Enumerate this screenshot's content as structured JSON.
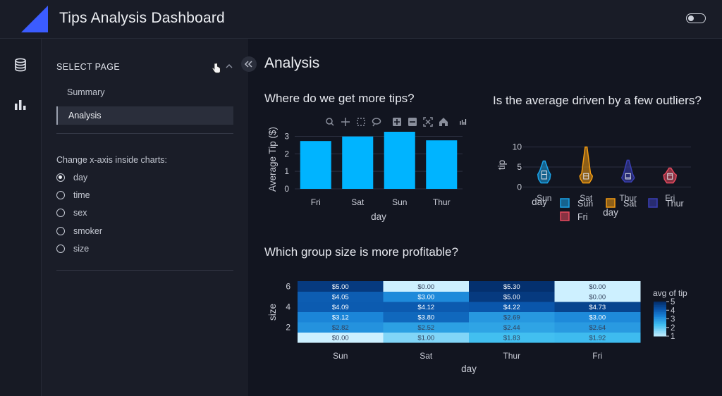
{
  "app": {
    "title": "Tips Analysis Dashboard",
    "brand_color": "#3b5cff"
  },
  "rail": {
    "icons": [
      "database-icon",
      "bar-chart-icon"
    ]
  },
  "sidebar": {
    "select_page_label": "SELECT PAGE",
    "pages": [
      {
        "label": "Summary",
        "active": false
      },
      {
        "label": "Analysis",
        "active": true
      }
    ],
    "xaxis_prompt": "Change x-axis inside charts:",
    "xaxis_options": [
      {
        "label": "day",
        "checked": true
      },
      {
        "label": "time",
        "checked": false
      },
      {
        "label": "sex",
        "checked": false
      },
      {
        "label": "smoker",
        "checked": false
      },
      {
        "label": "size",
        "checked": false
      }
    ]
  },
  "main": {
    "heading": "Analysis",
    "q1": "Where do we get more tips?",
    "q2": "Is the average driven by a few outliers?",
    "q3": "Which group size is more profitable?"
  },
  "chart_data": [
    {
      "type": "bar",
      "categories": [
        "Fri",
        "Sat",
        "Sun",
        "Thur"
      ],
      "values": [
        2.73,
        2.99,
        3.26,
        2.77
      ],
      "xlabel": "day",
      "ylabel": "Average Tip ($)",
      "ylim": [
        0,
        3.3
      ],
      "yticks": [
        0,
        1,
        2,
        3
      ],
      "color": "#00b4ff",
      "modebar_icons": [
        "zoom-icon",
        "pan-icon",
        "box-select-icon",
        "lasso-icon",
        "zoom-in-icon",
        "zoom-out-icon",
        "autoscale-icon",
        "reset-axes-icon",
        "plotly-logo-icon"
      ]
    },
    {
      "type": "violin",
      "categories": [
        "Sun",
        "Sat",
        "Thur",
        "Fri"
      ],
      "xlabel": "day",
      "ylabel": "tip",
      "ylim": [
        -1,
        11
      ],
      "yticks": [
        0,
        5,
        10
      ],
      "series": [
        {
          "name": "Sun",
          "color": "#1aa3e8",
          "min": 1.01,
          "q1": 2.0,
          "median": 3.15,
          "q3": 4.0,
          "max": 6.5
        },
        {
          "name": "Sat",
          "color": "#f39c12",
          "min": 1.0,
          "q1": 2.0,
          "median": 2.75,
          "q3": 3.37,
          "max": 10.0
        },
        {
          "name": "Thur",
          "color": "#3a3fb5",
          "min": 1.25,
          "q1": 2.0,
          "median": 2.3,
          "q3": 3.36,
          "max": 6.7
        },
        {
          "name": "Fri",
          "color": "#e84a5f",
          "min": 1.0,
          "q1": 1.96,
          "median": 3.0,
          "q3": 3.36,
          "max": 4.73
        }
      ],
      "legend": [
        "Sun",
        "Sat",
        "Thur",
        "Fri"
      ]
    },
    {
      "type": "heatmap",
      "x": [
        "Sun",
        "Sat",
        "Thur",
        "Fri"
      ],
      "y": [
        1,
        2,
        3,
        4,
        5,
        6
      ],
      "z": [
        [
          0.0,
          1.0,
          1.83,
          1.92
        ],
        [
          2.82,
          2.52,
          2.44,
          2.64
        ],
        [
          3.12,
          3.8,
          2.69,
          3.0
        ],
        [
          4.09,
          4.12,
          4.22,
          4.73
        ],
        [
          4.05,
          3.0,
          5.0,
          0.0
        ],
        [
          5.0,
          0.0,
          5.3,
          0.0
        ]
      ],
      "labels": [
        [
          "$0.00",
          "$1.00",
          "$1.83",
          "$1.92"
        ],
        [
          "$2.82",
          "$2.52",
          "$2.44",
          "$2.64"
        ],
        [
          "$3.12",
          "$3.80",
          "$2.69",
          "$3.00"
        ],
        [
          "$4.09",
          "$4.12",
          "$4.22",
          "$4.73"
        ],
        [
          "$4.05",
          "$3.00",
          "$5.00",
          "$0.00"
        ],
        [
          "$5.00",
          "$0.00",
          "$5.30",
          "$0.00"
        ]
      ],
      "xlabel": "day",
      "ylabel": "size",
      "yticks": [
        2,
        4,
        6
      ],
      "colorbar_title": "avg of tip",
      "colorbar_ticks": [
        1,
        2,
        3,
        4,
        5
      ],
      "zrange": [
        0,
        5.3
      ]
    }
  ]
}
